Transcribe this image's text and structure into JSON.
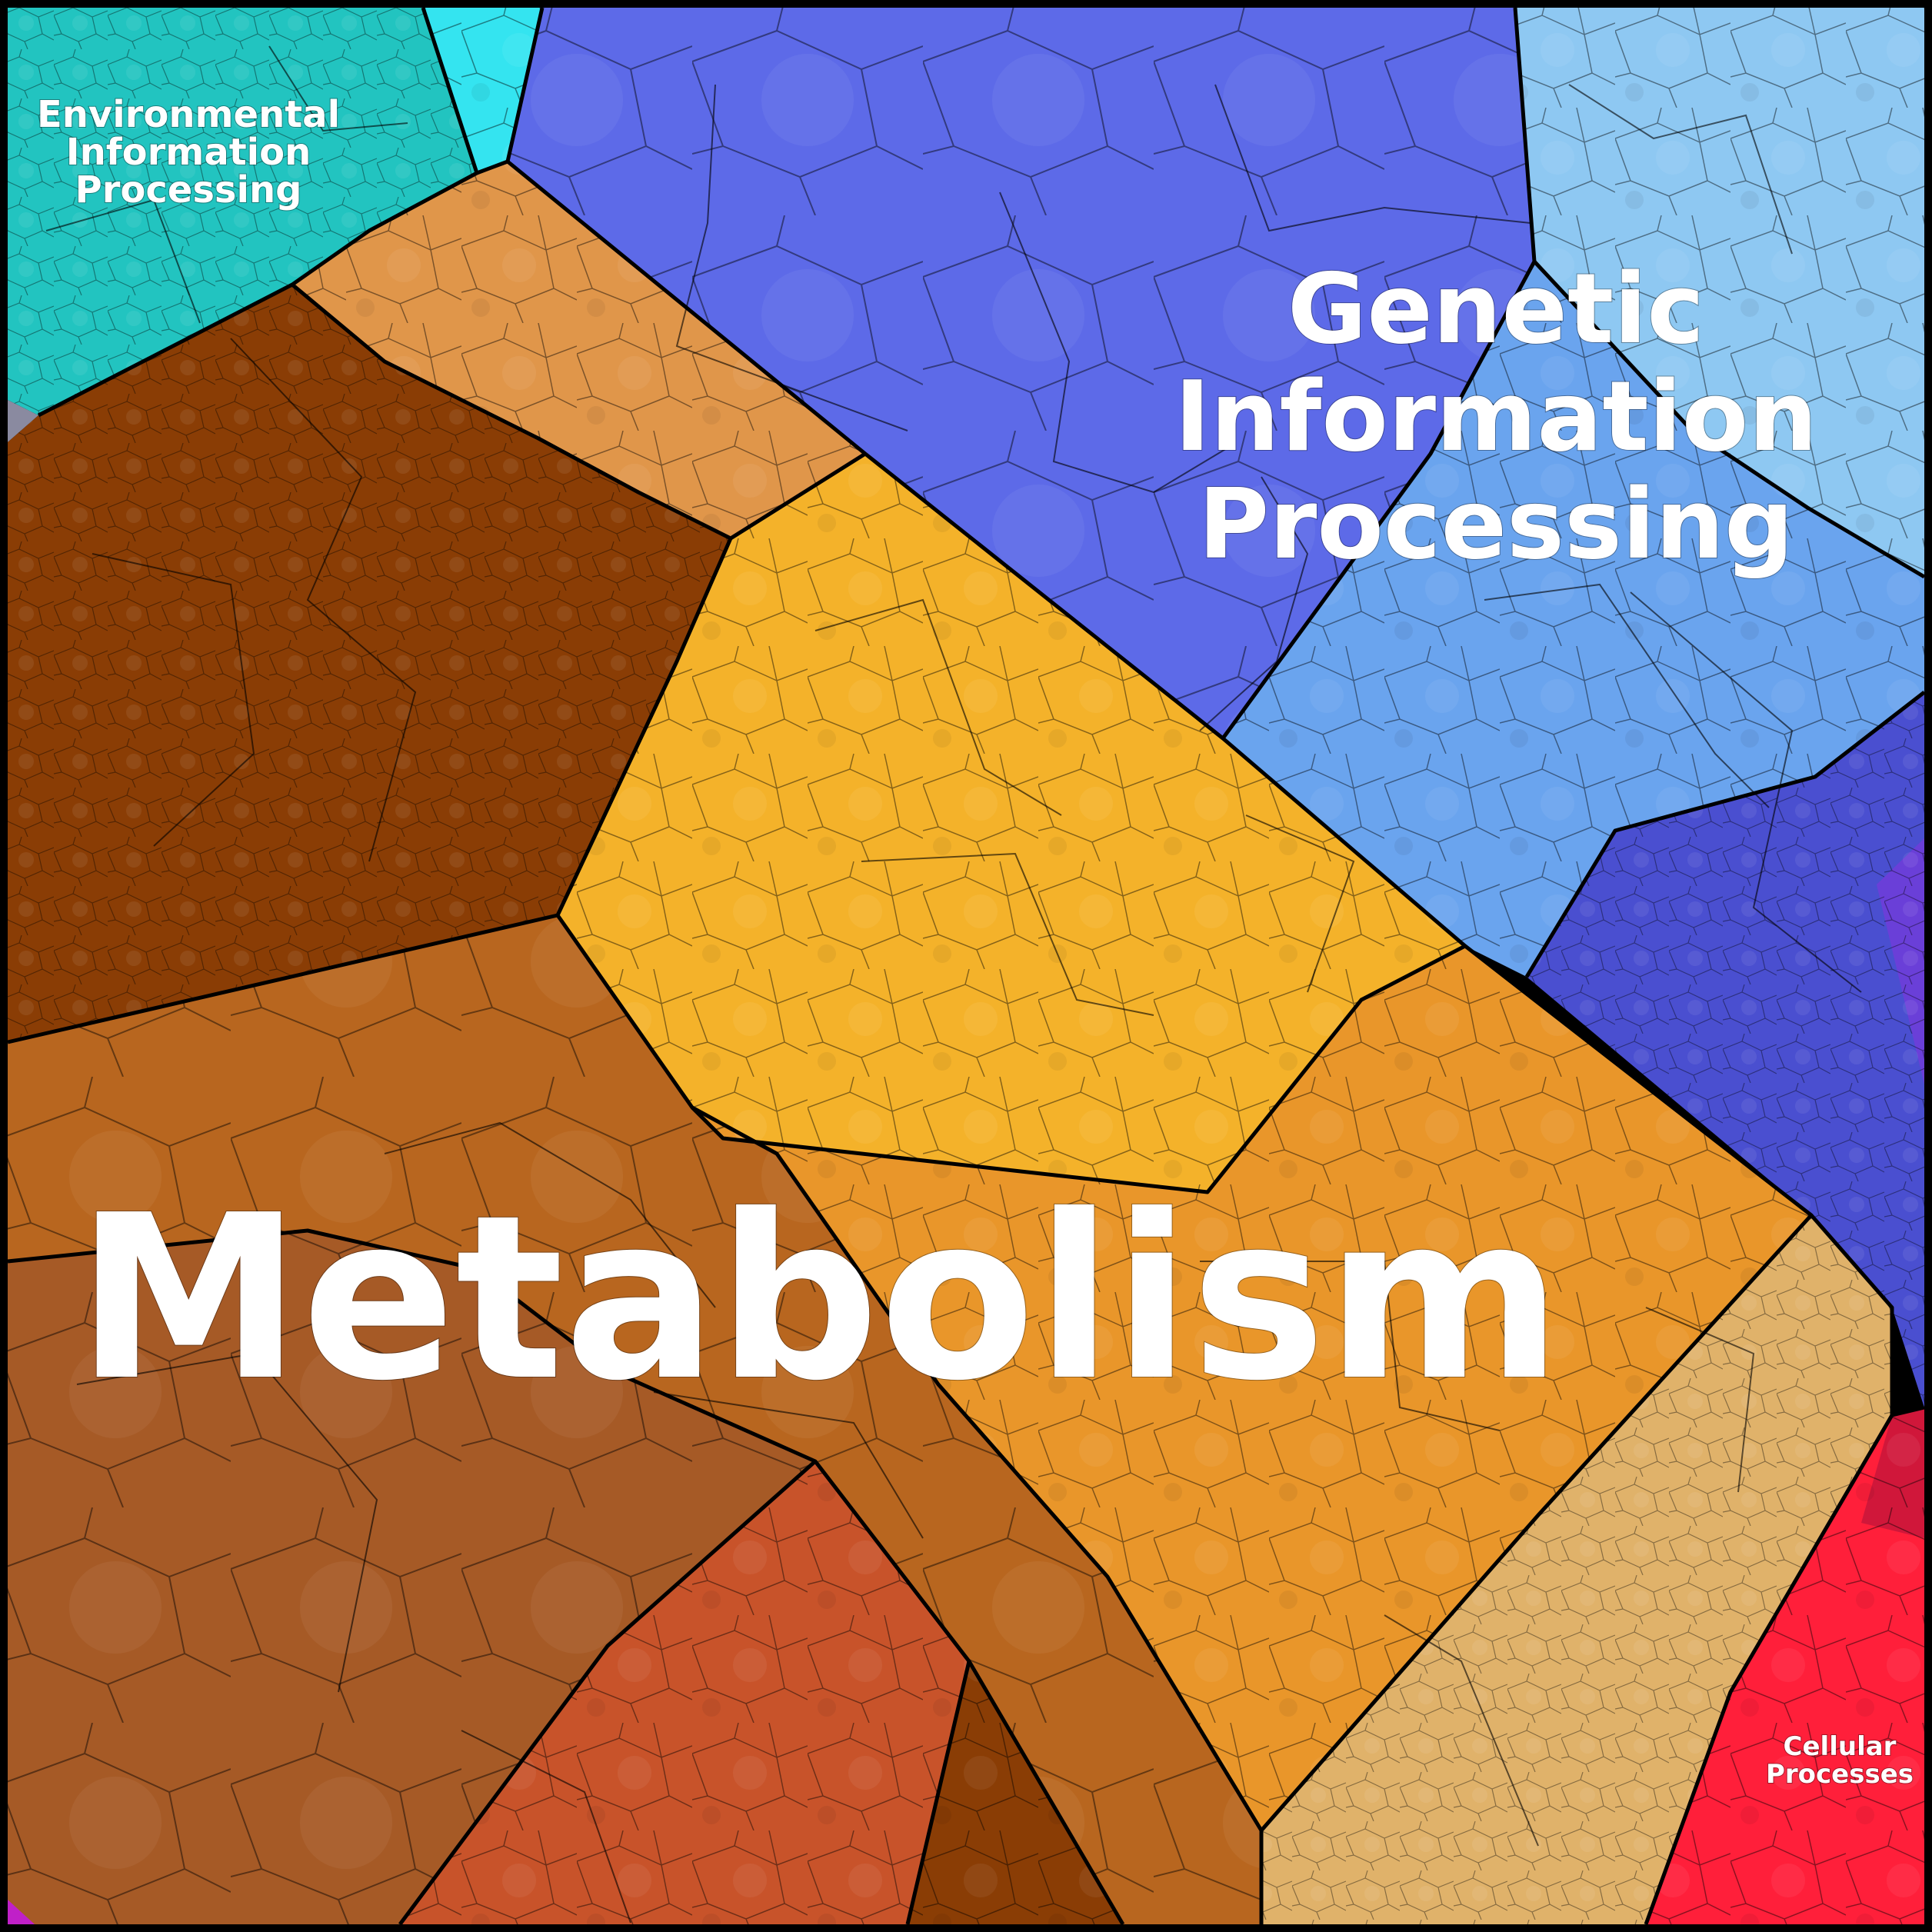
{
  "labels": {
    "metabolism": "Metabolism",
    "genetic": [
      "Genetic",
      "Information",
      "Processing"
    ],
    "environmental": [
      "Environmental",
      "Information",
      "Processing"
    ],
    "cellular": [
      "Cellular",
      "Processes"
    ]
  },
  "colors": {
    "metabolism_dark_brown": "#8a3d05",
    "metabolism_brown": "#b8661f",
    "metabolism_light_orange": "#e0964a",
    "metabolism_yellow": "#f4b22a",
    "metabolism_orange": "#e9962a",
    "metabolism_tan": "#e0b26a",
    "metabolism_red_orange": "#c8532a",
    "metabolism_bottom_brown": "#a65a26",
    "genetic_blue": "#5d6ae8",
    "genetic_mid_blue": "#4a6ee0",
    "genetic_light_blue": "#8ec8f2",
    "genetic_sky_blue": "#6aa4ee",
    "genetic_indigo": "#4a4fd0",
    "environmental_teal": "#22c4c0",
    "environmental_cyan": "#34e4f0",
    "cellular_red": "#ff1f3a",
    "borders": "#000000"
  }
}
